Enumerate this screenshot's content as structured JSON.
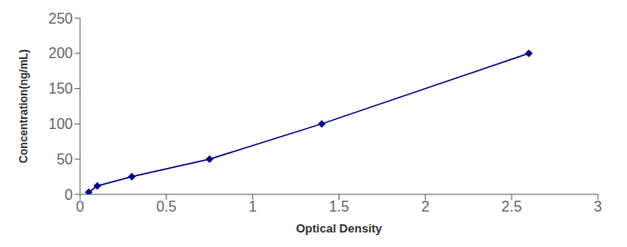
{
  "chart_data": {
    "type": "line",
    "x": [
      0.05,
      0.1,
      0.3,
      0.75,
      1.4,
      2.6
    ],
    "values": [
      3,
      12,
      25,
      50,
      100,
      200
    ],
    "color": "#00008B",
    "marker": "diamond",
    "line_style": "solid",
    "xlabel": "Optical Density",
    "ylabel": "Concentration(ng/mL)",
    "xlim": [
      0,
      3
    ],
    "ylim": [
      0,
      250
    ],
    "xticks": [
      0,
      0.5,
      1,
      1.5,
      2,
      2.5,
      3
    ],
    "yticks": [
      0,
      50,
      100,
      150,
      200,
      250
    ],
    "grid": false
  }
}
